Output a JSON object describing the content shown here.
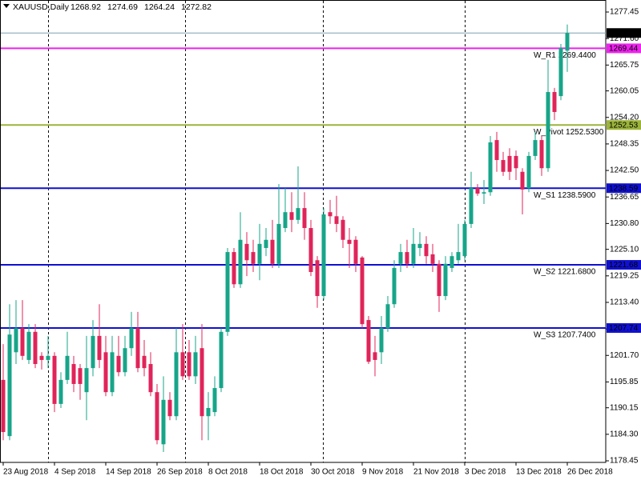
{
  "chart_data": {
    "type": "candlestick",
    "title": "XAUUSD,Daily",
    "categories": [
      "23 Aug 2018",
      null,
      null,
      null,
      null,
      null,
      null,
      null,
      "4 Sep 2018",
      null,
      null,
      null,
      null,
      null,
      null,
      null,
      "14 Sep 2018",
      null,
      null,
      null,
      null,
      null,
      null,
      null,
      "26 Sep 2018",
      null,
      null,
      null,
      null,
      null,
      null,
      null,
      "8 Oct 2018",
      null,
      null,
      null,
      null,
      null,
      null,
      null,
      "18 Oct 2018",
      null,
      null,
      null,
      null,
      null,
      null,
      null,
      "30 Oct 2018",
      null,
      null,
      null,
      null,
      null,
      null,
      null,
      "9 Nov 2018",
      null,
      null,
      null,
      null,
      null,
      null,
      null,
      "21 Nov 2018",
      null,
      null,
      null,
      null,
      null,
      null,
      null,
      "3 Dec 2018",
      null,
      null,
      null,
      null,
      null,
      null,
      null,
      "13 Dec 2018",
      null,
      null,
      null,
      null,
      null,
      null,
      null,
      "26 Dec 2018"
    ],
    "open": [
      1196.3,
      1183.9,
      1202.4,
      1207.7,
      1200.7,
      1206.9,
      1201.6,
      1200.7,
      1201.6,
      1191.0,
      1196.3,
      1199.8,
      1198.9,
      1193.6,
      1198.9,
      1206.0,
      1202.4,
      1193.6,
      1201.6,
      1198.0,
      1203.3,
      1207.7,
      1201.6,
      1199.8,
      1193.6,
      1182.1,
      1191.9,
      1188.3,
      1202.4,
      1202.4,
      1197.1,
      1203.3,
      1188.3,
      1189.2,
      1194.5,
      1206.9,
      1224.5,
      1217.4,
      1226.3,
      1224.5,
      1221.9,
      1225.4,
      1227.2,
      1221.9,
      1229.8,
      1233.3,
      1231.6,
      1234.2,
      1229.8,
      1222.7,
      1214.8,
      1233.3,
      1232.4,
      1231.6,
      1227.2,
      1227.2,
      1223.3,
      1209.5,
      1202.4,
      1202.4,
      1207.7,
      1213.0,
      1221.9,
      1224.5,
      1221.9,
      1225.4,
      1226.3,
      1224.0,
      1221.9,
      1214.8,
      1221.0,
      1222.7,
      1223.6,
      1230.7,
      1238.6,
      1237.4,
      1237.7,
      1249.2,
      1244.8,
      1245.7,
      1245.7,
      1242.2,
      1238.6,
      1245.7,
      1249.2,
      1243.0,
      1259.8,
      1258.9,
      1268.92
    ],
    "high": [
      1204.2,
      1213.0,
      1213.9,
      1213.9,
      1208.6,
      1208.6,
      1202.4,
      1206.0,
      1202.4,
      1198.0,
      1206.9,
      1201.6,
      1199.8,
      1206.0,
      1209.5,
      1213.0,
      1206.0,
      1206.0,
      1206.0,
      1206.0,
      1211.3,
      1211.3,
      1205.1,
      1202.4,
      1195.4,
      1197.1,
      1193.6,
      1207.7,
      1208.6,
      1205.1,
      1206.0,
      1208.6,
      1193.6,
      1197.1,
      1207.7,
      1225.4,
      1225.4,
      1233.3,
      1228.9,
      1227.2,
      1230.7,
      1229.8,
      1231.6,
      1239.5,
      1238.6,
      1237.7,
      1243.4,
      1237.7,
      1231.6,
      1223.6,
      1234.2,
      1236.0,
      1236.9,
      1232.4,
      1229.8,
      1228.0,
      1223.6,
      1210.4,
      1206.0,
      1210.4,
      1214.8,
      1222.7,
      1226.3,
      1227.2,
      1229.8,
      1228.9,
      1228.0,
      1226.3,
      1222.7,
      1223.6,
      1224.5,
      1230.7,
      1231.6,
      1242.2,
      1239.5,
      1240.4,
      1250.1,
      1251.0,
      1246.6,
      1247.4,
      1246.9,
      1243.0,
      1246.6,
      1251.0,
      1250.1,
      1266.9,
      1260.7,
      1270.4,
      1274.69
    ],
    "low": [
      1183.0,
      1183.0,
      1199.8,
      1200.7,
      1199.8,
      1198.9,
      1198.6,
      1198.9,
      1189.2,
      1190.1,
      1195.4,
      1193.6,
      1191.9,
      1187.4,
      1197.1,
      1198.9,
      1192.7,
      1192.7,
      1197.1,
      1197.1,
      1201.6,
      1198.0,
      1197.1,
      1192.7,
      1182.1,
      1180.4,
      1187.4,
      1187.4,
      1196.3,
      1196.3,
      1195.4,
      1183.0,
      1183.0,
      1188.3,
      1193.6,
      1206.0,
      1216.6,
      1216.6,
      1219.2,
      1220.1,
      1218.3,
      1223.6,
      1221.0,
      1221.0,
      1228.9,
      1228.9,
      1230.7,
      1227.2,
      1219.2,
      1212.2,
      1213.9,
      1230.7,
      1228.9,
      1225.4,
      1221.0,
      1220.1,
      1207.7,
      1199.8,
      1197.1,
      1199.8,
      1206.9,
      1212.2,
      1220.1,
      1221.0,
      1221.0,
      1223.6,
      1221.9,
      1220.1,
      1211.3,
      1213.9,
      1220.1,
      1221.9,
      1222.7,
      1229.8,
      1236.9,
      1235.1,
      1236.9,
      1242.2,
      1241.3,
      1240.4,
      1240.4,
      1232.8,
      1237.7,
      1244.8,
      1241.3,
      1242.2,
      1253.6,
      1258.0,
      1264.24
    ],
    "close": [
      1184.8,
      1206.3,
      1207.7,
      1201.6,
      1206.9,
      1199.8,
      1200.7,
      1201.6,
      1191.0,
      1196.3,
      1201.6,
      1195.4,
      1195.4,
      1198.9,
      1206.0,
      1200.7,
      1193.6,
      1202.4,
      1198.0,
      1203.3,
      1207.7,
      1198.9,
      1198.9,
      1193.6,
      1183.0,
      1191.9,
      1188.3,
      1202.4,
      1197.1,
      1197.1,
      1202.4,
      1188.3,
      1190.1,
      1194.5,
      1206.9,
      1224.5,
      1217.4,
      1227.2,
      1222.7,
      1221.9,
      1226.3,
      1227.2,
      1221.9,
      1230.7,
      1233.3,
      1231.6,
      1234.2,
      1229.8,
      1220.1,
      1214.8,
      1232.8,
      1232.4,
      1230.7,
      1227.2,
      1226.3,
      1221.9,
      1208.6,
      1200.3,
      1200.7,
      1207.7,
      1213.0,
      1221.0,
      1224.5,
      1221.9,
      1226.3,
      1226.3,
      1223.6,
      1221.9,
      1214.8,
      1221.9,
      1223.6,
      1224.5,
      1230.7,
      1238.6,
      1237.4,
      1237.7,
      1248.7,
      1244.8,
      1242.2,
      1242.2,
      1243.0,
      1238.3,
      1245.7,
      1249.2,
      1243.0,
      1259.8,
      1255.4,
      1269.5,
      1272.82
    ],
    "up_color": "#17a589",
    "down_color": "#e0245a",
    "bid_color": "#7f9faf",
    "ylim": [
      1178.1,
      1280.1
    ],
    "yticks": [
      1277.45,
      {
        "value": 1271.6,
        "label": "1271.60"
      },
      1265.75,
      1260.05,
      {
        "value": 1254.2,
        "label": "1254.20"
      },
      1248.35,
      {
        "value": 1242.5,
        "label": "1242.50"
      },
      1236.65,
      {
        "value": 1230.8,
        "label": "1230.80"
      },
      {
        "value": 1225.1,
        "label": "1225.10"
      },
      1219.25,
      {
        "value": 1213.4,
        "label": "1213.40"
      },
      1207.55,
      {
        "value": 1201.7,
        "label": "1201.70"
      },
      1195.85,
      1190.15,
      {
        "value": 1184.3,
        "label": "1184.30"
      },
      1178.45
    ],
    "levels": [
      {
        "value": 1269.44,
        "text": "W_R1 1269.4400",
        "color": "#ee22ee"
      },
      {
        "value": 1252.53,
        "text": "W_Pivot 1252.5300",
        "color": "#9cb43a"
      },
      {
        "value": 1238.59,
        "text": "W_S1 1238.5900",
        "color": "#1010d0"
      },
      {
        "value": 1221.68,
        "text": "W_S2 1221.6800",
        "color": "#1010d0"
      },
      {
        "value": 1207.74,
        "text": "W_S3 1207.7400",
        "color": "#1010d0"
      }
    ]
  }
}
